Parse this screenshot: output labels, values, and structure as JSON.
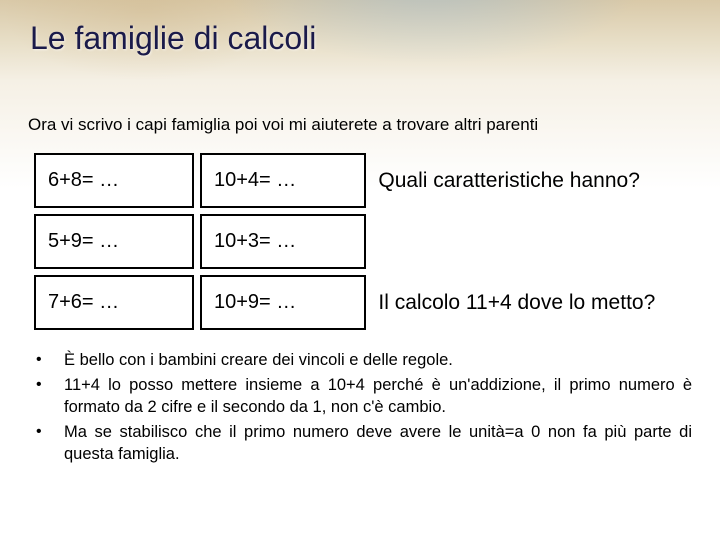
{
  "title": "Le famiglie di calcoli",
  "intro": "Ora vi scrivo i capi famiglia poi voi mi aiuterete a trovare altri parenti",
  "grid": {
    "rows": [
      {
        "c1": "6+8= …",
        "c2": "10+4= …",
        "c3": "Quali caratteristiche hanno?",
        "c3_border": false
      },
      {
        "c1": "5+9= …",
        "c2": "10+3= …",
        "c3": "",
        "c3_border": false
      },
      {
        "c1": "7+6= …",
        "c2": "10+9= …",
        "c3": "Il calcolo 11+4 dove lo metto?",
        "c3_border": false
      }
    ],
    "col_widths": [
      "25%",
      "26%",
      "49%"
    ],
    "cell_border_color": "#000000",
    "cell_font_family": "Verdana",
    "cell_font_size_pt": 15
  },
  "bullets": [
    "È bello con i bambini creare dei vincoli e delle regole.",
    "11+4 lo posso mettere insieme a 10+4 perché è un'addizione, il primo numero è formato da 2 cifre e il secondo da 1, non c'è cambio.",
    "Ma se stabilisco che il primo numero deve avere le unità=a 0 non fa più parte di questa famiglia."
  ],
  "colors": {
    "title": "#1a1a4a",
    "text": "#000000",
    "background_top": "#d9c9a8",
    "background_bottom": "#ffffff"
  },
  "typography": {
    "title_fontsize_pt": 24,
    "body_fontsize_pt": 13,
    "grid_fontsize_pt": 15,
    "question_fontsize_pt": 16
  }
}
